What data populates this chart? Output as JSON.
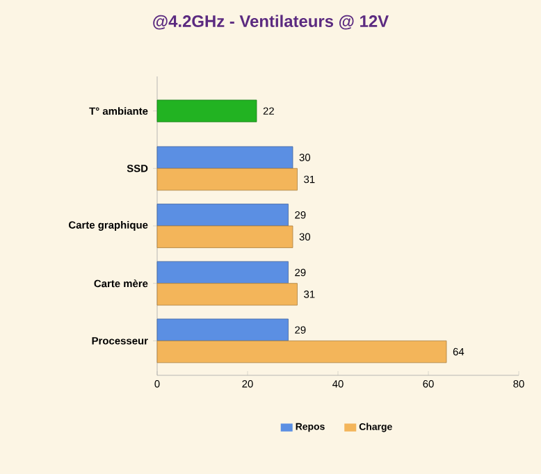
{
  "chart_data": {
    "type": "bar",
    "orientation": "horizontal",
    "title": "@4.2GHz - Ventilateurs @ 12V",
    "categories": [
      "T° ambiante",
      "SSD",
      "Carte graphique",
      "Carte mère",
      "Processeur"
    ],
    "series": [
      {
        "color": "#22b322",
        "values": [
          22,
          null,
          null,
          null,
          null
        ]
      },
      {
        "name": "Repos",
        "color": "#5b8fe3",
        "values": [
          null,
          30,
          29,
          29,
          29
        ]
      },
      {
        "name": "Charge",
        "color": "#f3b55a",
        "values": [
          null,
          31,
          30,
          31,
          64
        ]
      }
    ],
    "xlim": [
      0,
      80
    ],
    "xticks": [
      0,
      20,
      40,
      60,
      80
    ],
    "data_labels": true,
    "legend": "bottom",
    "grid": false
  }
}
